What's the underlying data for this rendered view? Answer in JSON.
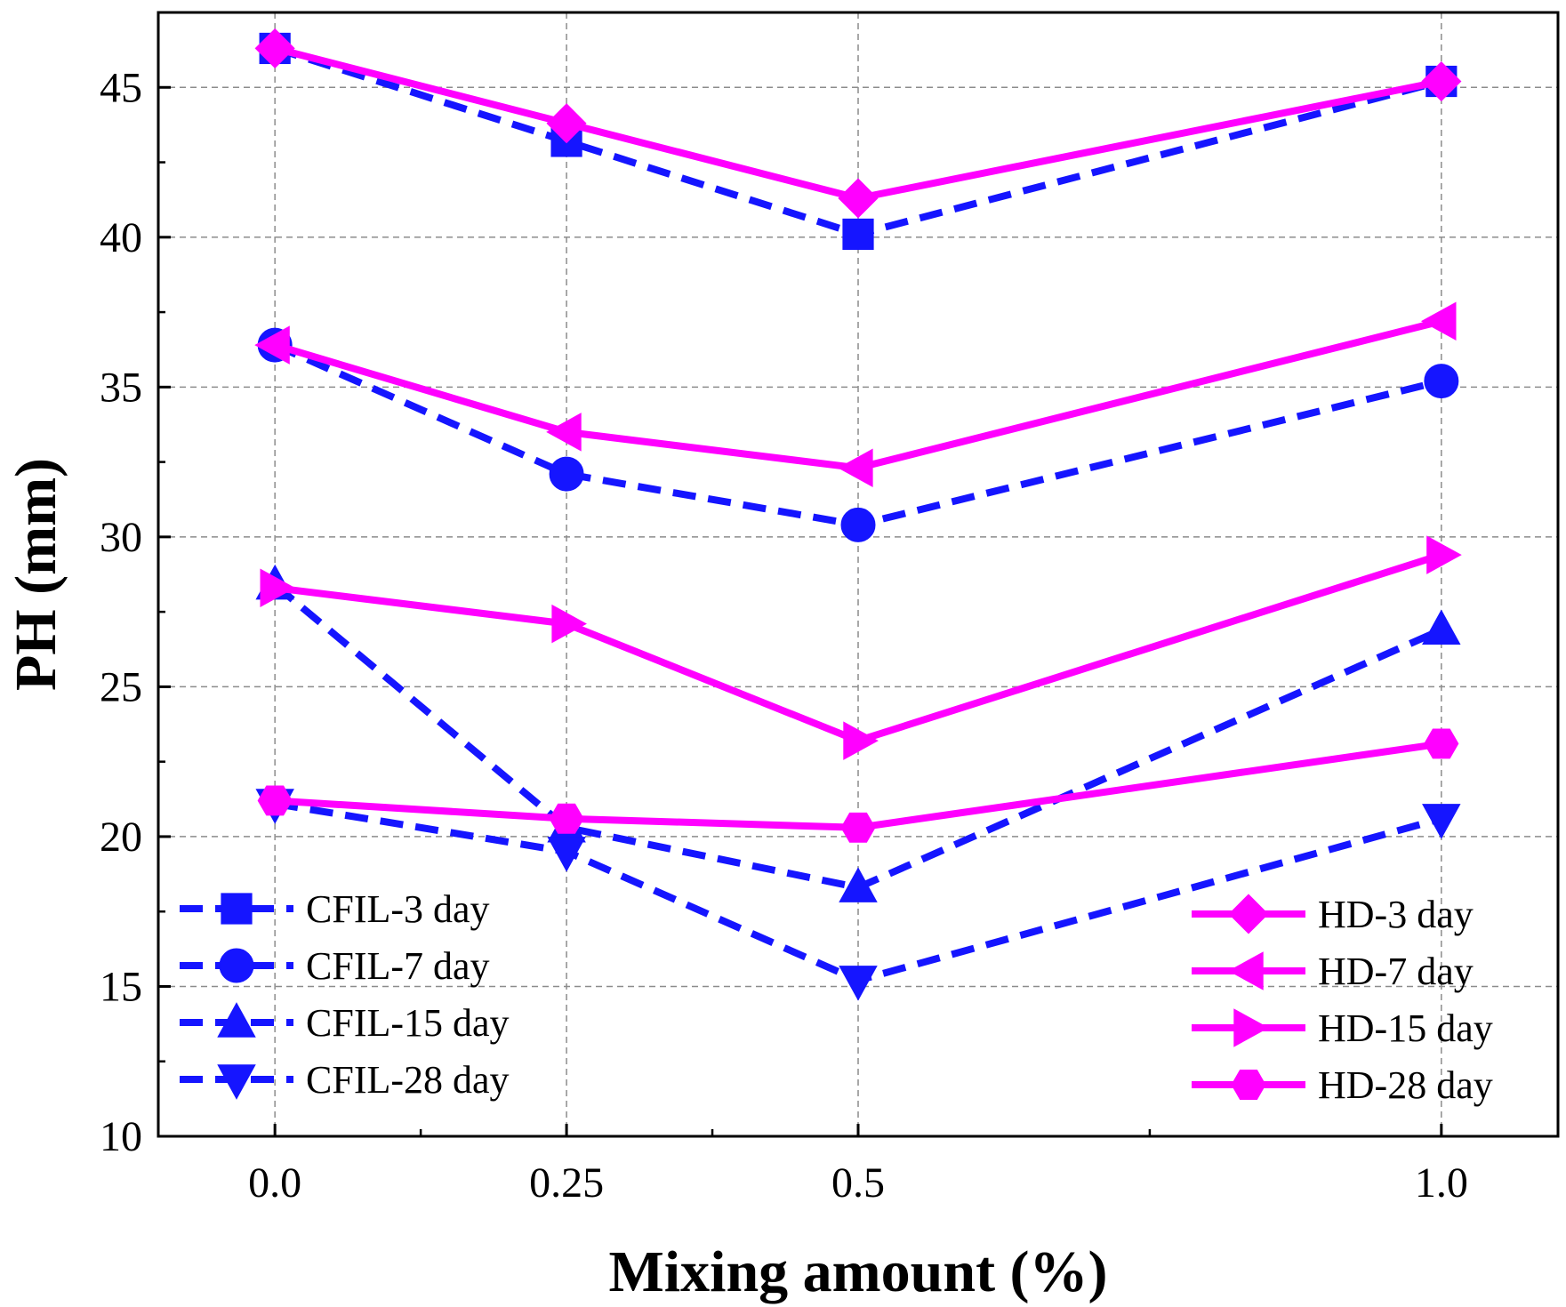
{
  "chart_data": {
    "type": "line",
    "title": "",
    "xlabel": "Mixing amount (%)",
    "ylabel": "PH (mm)",
    "categories": [
      "0.0",
      "0.25",
      "0.5",
      "1.0"
    ],
    "x": [
      0,
      0.25,
      0.5,
      1.0
    ],
    "xlim": [
      -0.1,
      1.1
    ],
    "ylim": [
      10,
      47.5
    ],
    "yticks": [
      "10",
      "15",
      "20",
      "25",
      "30",
      "35",
      "40",
      "45"
    ],
    "grid": true,
    "legend": {
      "placement_left": "bottom-left",
      "placement_right": "bottom-right"
    },
    "series": [
      {
        "name": "CFIL-3 day",
        "values": [
          46.3,
          43.2,
          40.1,
          45.2
        ],
        "color": "#1515ff",
        "line": "dashed",
        "marker": "square"
      },
      {
        "name": "CFIL-7 day",
        "values": [
          36.4,
          32.1,
          30.4,
          35.2
        ],
        "color": "#1515ff",
        "line": "dashed",
        "marker": "circle"
      },
      {
        "name": "CFIL-15 day",
        "values": [
          28.4,
          20.3,
          18.3,
          26.9
        ],
        "color": "#1515ff",
        "line": "dashed",
        "marker": "triangle-up"
      },
      {
        "name": "CFIL-28 day",
        "values": [
          21.1,
          19.5,
          15.2,
          20.6
        ],
        "color": "#1515ff",
        "line": "dashed",
        "marker": "triangle-down"
      },
      {
        "name": "HD-3 day",
        "values": [
          46.3,
          43.8,
          41.3,
          45.2
        ],
        "color": "#ff00ff",
        "line": "solid",
        "marker": "diamond"
      },
      {
        "name": "HD-7 day",
        "values": [
          36.4,
          33.5,
          32.3,
          37.2
        ],
        "color": "#ff00ff",
        "line": "solid",
        "marker": "triangle-left"
      },
      {
        "name": "HD-15 day",
        "values": [
          28.3,
          27.1,
          23.2,
          29.4
        ],
        "color": "#ff00ff",
        "line": "solid",
        "marker": "triangle-right"
      },
      {
        "name": "HD-28 day",
        "values": [
          21.2,
          20.6,
          20.3,
          23.1
        ],
        "color": "#ff00ff",
        "line": "solid",
        "marker": "hexagon"
      }
    ]
  }
}
